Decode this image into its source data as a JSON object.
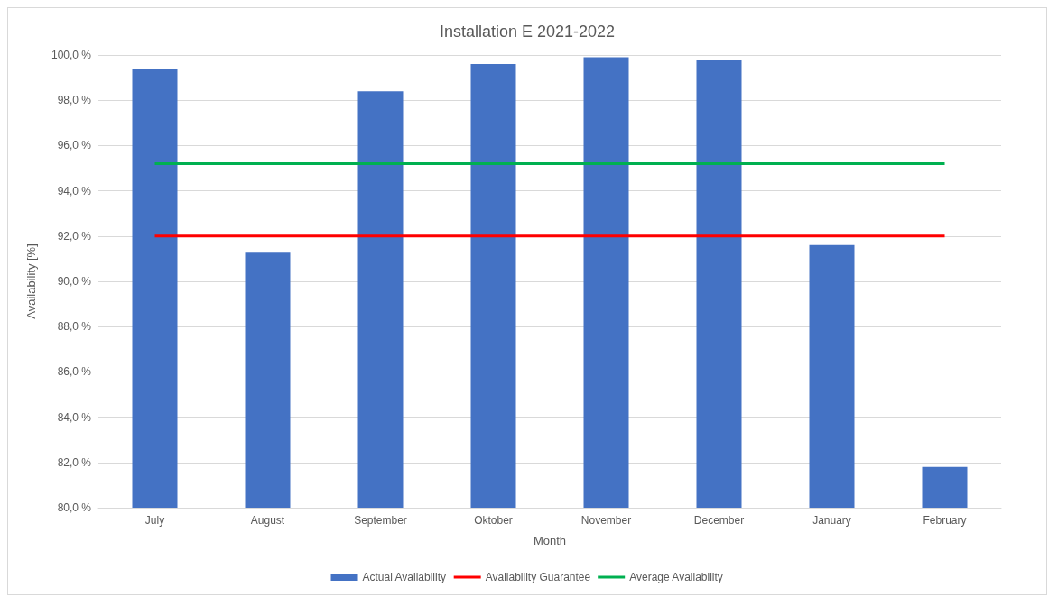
{
  "chart_data": {
    "type": "bar",
    "title": "Installation E 2021-2022",
    "xlabel": "Month",
    "ylabel": "Availability [%]",
    "categories": [
      "July",
      "August",
      "September",
      "Oktober",
      "November",
      "December",
      "January",
      "February"
    ],
    "series": [
      {
        "name": "Actual Availability",
        "color": "#4472c4",
        "values": [
          99.4,
          91.3,
          98.4,
          99.6,
          99.9,
          99.8,
          91.6,
          81.8
        ]
      },
      {
        "name": "Availability Guarantee",
        "type": "line",
        "color": "#ff0000",
        "values": [
          92.0,
          92.0,
          92.0,
          92.0,
          92.0,
          92.0,
          92.0,
          92.0
        ]
      },
      {
        "name": "Average Availability",
        "type": "line",
        "color": "#00b050",
        "values": [
          95.2,
          95.2,
          95.2,
          95.2,
          95.2,
          95.2,
          95.2,
          95.2
        ]
      }
    ],
    "ylim": [
      80,
      100
    ],
    "yticks": [
      {
        "value": 80,
        "label": "80,0 %"
      },
      {
        "value": 82,
        "label": "82,0 %"
      },
      {
        "value": 84,
        "label": "84,0 %"
      },
      {
        "value": 86,
        "label": "86,0 %"
      },
      {
        "value": 88,
        "label": "88,0 %"
      },
      {
        "value": 90,
        "label": "90,0 %"
      },
      {
        "value": 92,
        "label": "92,0 %"
      },
      {
        "value": 94,
        "label": "94,0 %"
      },
      {
        "value": 96,
        "label": "96,0 %"
      },
      {
        "value": 98,
        "label": "98,0 %"
      },
      {
        "value": 100,
        "label": "100,0 %"
      }
    ],
    "grid": "y",
    "legend": "bottom",
    "marker": "none",
    "line_style": "solid"
  }
}
